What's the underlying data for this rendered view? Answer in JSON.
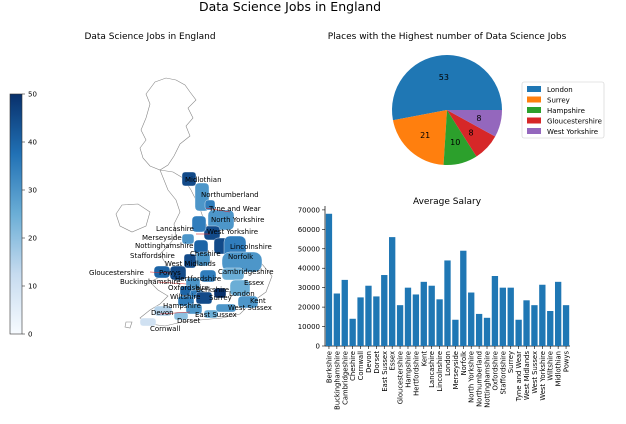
{
  "figure_title": "Data Science Jobs in England",
  "chart_data": [
    {
      "type": "heatmap",
      "title": "Data Science Jobs in England",
      "colorbar": {
        "min": 0,
        "max": 50,
        "ticks": [
          0,
          10,
          20,
          30,
          40,
          50
        ]
      },
      "regions": [
        {
          "name": "Midlothian",
          "value": 45
        },
        {
          "name": "Northumberland",
          "value": 30
        },
        {
          "name": "Tyne and Wear",
          "value": 35
        },
        {
          "name": "North Yorkshire",
          "value": 30
        },
        {
          "name": "West Yorkshire",
          "value": 45
        },
        {
          "name": "Lancashire",
          "value": 35
        },
        {
          "name": "Merseyside",
          "value": 30
        },
        {
          "name": "Nottinghamshire",
          "value": 45
        },
        {
          "name": "Cheshire",
          "value": 40
        },
        {
          "name": "Lincolnshire",
          "value": 35
        },
        {
          "name": "Staffordshire",
          "value": 30
        },
        {
          "name": "West Midlands",
          "value": 45
        },
        {
          "name": "Norfolk",
          "value": 30
        },
        {
          "name": "Gloucestershire",
          "value": 45
        },
        {
          "name": "Powys",
          "value": 40
        },
        {
          "name": "Hertfordshire",
          "value": 35
        },
        {
          "name": "Cambridgeshire",
          "value": 25
        },
        {
          "name": "Buckinghamshire",
          "value": 30
        },
        {
          "name": "Oxfordshire",
          "value": 40
        },
        {
          "name": "Essex",
          "value": 25
        },
        {
          "name": "Berkshire",
          "value": 35
        },
        {
          "name": "London",
          "value": 50
        },
        {
          "name": "Wiltshire",
          "value": 35
        },
        {
          "name": "Surrey",
          "value": 45
        },
        {
          "name": "Kent",
          "value": 30
        },
        {
          "name": "Hampshire",
          "value": 30
        },
        {
          "name": "West Sussex",
          "value": 30
        },
        {
          "name": "Devon",
          "value": 15
        },
        {
          "name": "Dorset",
          "value": 20
        },
        {
          "name": "East Sussex",
          "value": 25
        },
        {
          "name": "Cornwall",
          "value": 10
        }
      ]
    },
    {
      "type": "pie",
      "title": "Places with the Highest number of Data Science Jobs",
      "slices": [
        {
          "label": "London",
          "value": 53,
          "color": "#1f77b4"
        },
        {
          "label": "Surrey",
          "value": 21,
          "color": "#ff7f0e"
        },
        {
          "label": "Hampshire",
          "value": 10,
          "color": "#2ca02c"
        },
        {
          "label": "Gloucestershire",
          "value": 8,
          "color": "#d62728"
        },
        {
          "label": "West Yorkshire",
          "value": 8,
          "color": "#9467bd"
        }
      ],
      "legend_position": "right"
    },
    {
      "type": "bar",
      "title": "Average Salary",
      "color": "#1f77b4",
      "ylim": [
        0,
        72000
      ],
      "yticks": [
        0,
        10000,
        20000,
        30000,
        40000,
        50000,
        60000,
        70000
      ],
      "categories": [
        "Berkshire",
        "Buckinghamshire",
        "Cambridgeshire",
        "Cheshire",
        "Cornwall",
        "Devon",
        "Dorset",
        "East Sussex",
        "Essex",
        "Gloucestershire",
        "Hampshire",
        "Hertfordshire",
        "Kent",
        "Lancashire",
        "Lincolnshire",
        "London",
        "Merseyside",
        "Norfolk",
        "North Yorkshire",
        "Northumberland",
        "Nottinghamshire",
        "Oxfordshire",
        "Staffordshire",
        "Surrey",
        "Tyne and Wear",
        "West Midlands",
        "West Sussex",
        "West Yorkshire",
        "Wiltshire",
        "Midlothian",
        "Powys"
      ],
      "values": [
        68000,
        27000,
        34000,
        14000,
        25000,
        31000,
        25500,
        36500,
        56000,
        21000,
        30000,
        26500,
        33000,
        31000,
        24000,
        44000,
        13500,
        49000,
        27500,
        16500,
        14500,
        36000,
        30000,
        30000,
        13500,
        23500,
        21000,
        31500,
        18000,
        33000,
        21000
      ]
    }
  ]
}
